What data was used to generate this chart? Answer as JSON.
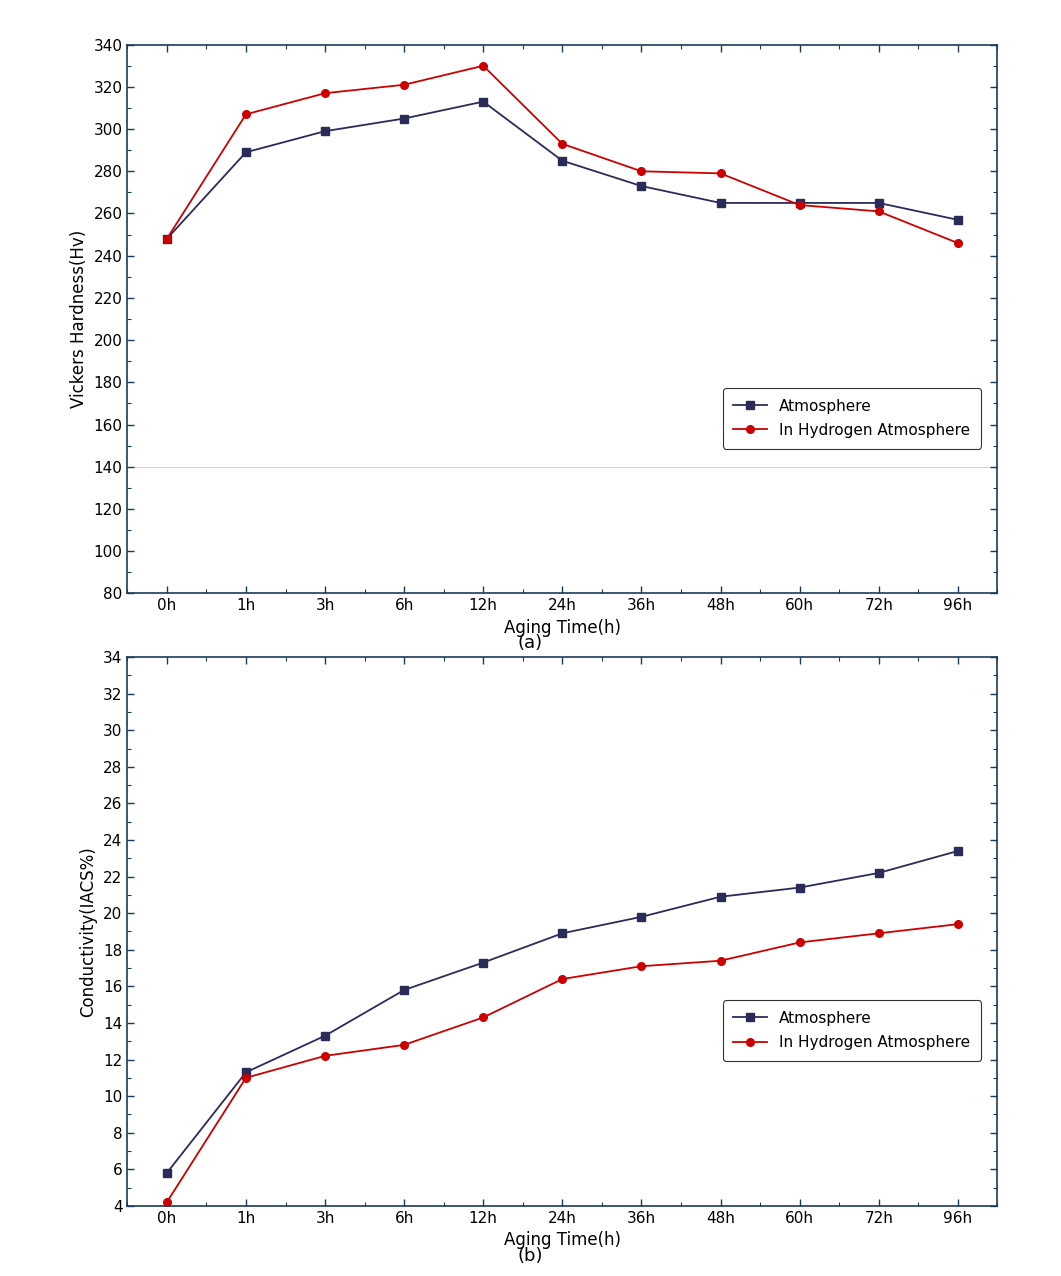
{
  "x_labels": [
    "0h",
    "1h",
    "3h",
    "6h",
    "12h",
    "24h",
    "36h",
    "48h",
    "60h",
    "72h",
    "96h"
  ],
  "x_positions": [
    0,
    1,
    2,
    3,
    4,
    5,
    6,
    7,
    8,
    9,
    10
  ],
  "hardness_atm": [
    248,
    289,
    299,
    305,
    313,
    285,
    273,
    265,
    265,
    265,
    257
  ],
  "hardness_hyd": [
    248,
    307,
    317,
    321,
    330,
    293,
    280,
    279,
    264,
    261,
    246
  ],
  "conductivity_atm": [
    5.8,
    11.3,
    13.3,
    15.8,
    17.3,
    18.9,
    19.8,
    20.9,
    21.4,
    22.2,
    23.4
  ],
  "conductivity_hyd": [
    4.2,
    11.0,
    12.2,
    12.8,
    14.3,
    16.4,
    17.1,
    17.4,
    18.4,
    18.9,
    19.4
  ],
  "atm_color": "#2b2b5a",
  "hyd_color": "#cc0000",
  "atm_label": "Atmosphere",
  "hyd_label": "In Hydrogen Atmosphere",
  "spine_color": "#1a3a5c",
  "hardness_ylabel": "Vickers Hardness(Hv)",
  "hardness_xlabel": "Aging Time(h)",
  "hardness_ylim": [
    80,
    340
  ],
  "hardness_yticks": [
    80,
    100,
    120,
    140,
    160,
    180,
    200,
    220,
    240,
    260,
    280,
    300,
    320,
    340
  ],
  "conductivity_ylabel": "Conductivity(IACS%)",
  "conductivity_xlabel": "Aging Time(h)",
  "conductivity_ylim": [
    4,
    34
  ],
  "conductivity_yticks": [
    4,
    6,
    8,
    10,
    12,
    14,
    16,
    18,
    20,
    22,
    24,
    26,
    28,
    30,
    32,
    34
  ],
  "label_a": "(a)",
  "label_b": "(b)",
  "fig_width": 10.61,
  "fig_height": 12.76,
  "dpi": 100
}
